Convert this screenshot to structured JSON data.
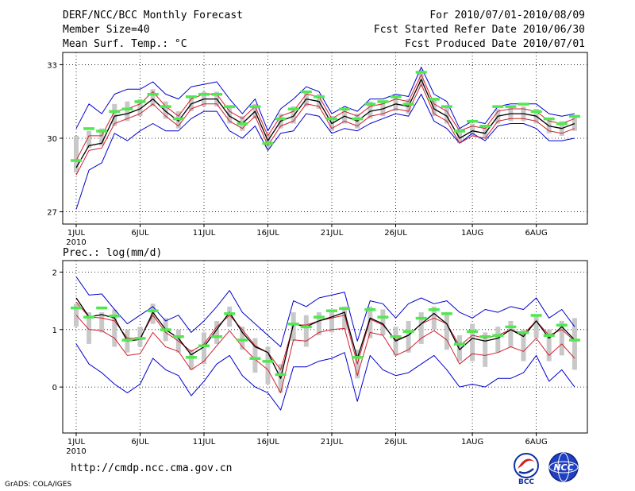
{
  "header": {
    "title": "DERF/NCC/BCC Monthly Forecast",
    "member_size": "Member Size=40",
    "variable_top": "Mean Surf. Temp.: °C",
    "period": "For 2010/07/01-2010/08/09",
    "started": "Fcst Started Refer Date 2010/06/30",
    "produced": "Fcst Produced Date 2010/07/01"
  },
  "footer": {
    "url": "http://cmdp.ncc.cma.gov.cn",
    "credit": "GrADS: COLA/IGES",
    "logo_left": "BCC",
    "logo_right": "NCC"
  },
  "colors": {
    "envelope": "#0000d0",
    "spread": "#d02030",
    "mean": "#000000",
    "marker": "#50e850",
    "box": "#c8c8c8"
  },
  "chart_data": [
    {
      "type": "line",
      "title": "Mean Surf. Temp.: °C",
      "x": [
        1,
        2,
        3,
        4,
        5,
        6,
        7,
        8,
        9,
        10,
        11,
        12,
        13,
        14,
        15,
        16,
        17,
        18,
        19,
        20,
        21,
        22,
        23,
        24,
        25,
        26,
        27,
        28,
        29,
        30,
        31,
        32,
        33,
        34,
        35,
        36,
        37,
        38,
        39,
        40
      ],
      "x_ticks": [
        {
          "x": 1,
          "label": "1JUL"
        },
        {
          "x": 6,
          "label": "6JUL"
        },
        {
          "x": 11,
          "label": "11JUL"
        },
        {
          "x": 16,
          "label": "16JUL"
        },
        {
          "x": 21,
          "label": "21JUL"
        },
        {
          "x": 26,
          "label": "26JUL"
        },
        {
          "x": 32,
          "label": "1AUG"
        },
        {
          "x": 37,
          "label": "6AUG"
        }
      ],
      "x_sublabel": "2010",
      "ylim": [
        26.5,
        33.5
      ],
      "y_ticks": [
        27,
        30,
        33
      ],
      "grid": true,
      "series": [
        {
          "name": "Ensemble max",
          "values": [
            30.4,
            31.4,
            31.0,
            31.8,
            32.0,
            32.0,
            32.3,
            31.8,
            31.6,
            32.1,
            32.2,
            32.3,
            31.6,
            31.0,
            31.6,
            30.3,
            31.2,
            31.6,
            32.1,
            31.9,
            31.0,
            31.3,
            31.1,
            31.6,
            31.6,
            31.8,
            31.7,
            32.9,
            31.8,
            31.5,
            30.4,
            30.7,
            30.6,
            31.3,
            31.4,
            31.4,
            31.4,
            31.0,
            30.9,
            31.0
          ]
        },
        {
          "name": "Ensemble spread upper",
          "values": [
            29.1,
            30.1,
            30.1,
            31.1,
            31.2,
            31.4,
            31.9,
            31.3,
            30.9,
            31.6,
            31.8,
            31.8,
            31.1,
            30.8,
            31.3,
            30.1,
            30.9,
            31.1,
            31.8,
            31.7,
            30.8,
            31.1,
            30.9,
            31.3,
            31.4,
            31.6,
            31.5,
            32.6,
            31.4,
            31.1,
            30.3,
            30.5,
            30.4,
            31.1,
            31.2,
            31.2,
            31.1,
            30.7,
            30.6,
            30.8
          ]
        },
        {
          "name": "Ensemble mean",
          "values": [
            28.8,
            29.7,
            29.8,
            30.9,
            31.0,
            31.2,
            31.6,
            31.1,
            30.7,
            31.4,
            31.6,
            31.6,
            30.9,
            30.6,
            31.1,
            29.9,
            30.7,
            30.9,
            31.6,
            31.5,
            30.6,
            30.9,
            30.7,
            31.1,
            31.2,
            31.4,
            31.3,
            32.4,
            31.2,
            30.9,
            30.0,
            30.3,
            30.2,
            30.9,
            31.0,
            31.0,
            30.9,
            30.5,
            30.4,
            30.6
          ]
        },
        {
          "name": "Ensemble spread lower",
          "values": [
            28.5,
            29.5,
            29.6,
            30.6,
            30.8,
            31.0,
            31.4,
            30.9,
            30.5,
            31.2,
            31.4,
            31.4,
            30.7,
            30.4,
            30.9,
            29.7,
            30.5,
            30.7,
            31.4,
            31.3,
            30.4,
            30.7,
            30.5,
            30.9,
            31.0,
            31.2,
            31.1,
            32.2,
            31.0,
            30.7,
            29.8,
            30.1,
            30.0,
            30.7,
            30.8,
            30.8,
            30.7,
            30.3,
            30.2,
            30.4
          ]
        },
        {
          "name": "Ensemble min",
          "values": [
            27.1,
            28.7,
            29.0,
            30.2,
            29.9,
            30.3,
            30.6,
            30.3,
            30.3,
            30.8,
            31.1,
            31.1,
            30.3,
            30.0,
            30.5,
            29.5,
            30.2,
            30.3,
            31.0,
            30.9,
            30.2,
            30.4,
            30.3,
            30.6,
            30.8,
            31.0,
            30.9,
            31.8,
            30.7,
            30.4,
            29.8,
            30.2,
            29.9,
            30.5,
            30.6,
            30.6,
            30.4,
            29.9,
            29.9,
            30.0
          ]
        },
        {
          "name": "Box low",
          "values": [
            28.6,
            29.6,
            29.7,
            30.5,
            30.7,
            30.9,
            31.3,
            30.8,
            30.4,
            31.1,
            31.3,
            31.3,
            30.6,
            30.3,
            30.8,
            29.6,
            30.4,
            30.6,
            31.3,
            31.2,
            30.3,
            30.6,
            30.4,
            30.8,
            30.9,
            31.1,
            31.0,
            32.1,
            30.9,
            30.6,
            29.8,
            30.1,
            30.0,
            30.6,
            30.7,
            30.7,
            30.6,
            30.2,
            30.1,
            30.3
          ]
        },
        {
          "name": "Box high",
          "values": [
            30.1,
            30.3,
            30.4,
            31.4,
            31.5,
            31.6,
            32.0,
            31.5,
            31.1,
            31.7,
            31.9,
            31.9,
            31.3,
            30.9,
            31.4,
            30.2,
            31.0,
            31.3,
            31.9,
            31.8,
            30.9,
            31.2,
            31.0,
            31.5,
            31.5,
            31.7,
            31.6,
            32.8,
            31.6,
            31.3,
            30.4,
            30.6,
            30.5,
            31.2,
            31.3,
            31.3,
            31.2,
            30.8,
            30.7,
            30.9
          ]
        },
        {
          "name": "Median marker",
          "values": [
            29.1,
            30.4,
            30.3,
            31.1,
            31.2,
            31.5,
            31.8,
            31.3,
            30.8,
            31.7,
            31.8,
            31.8,
            31.3,
            30.6,
            31.3,
            29.8,
            30.8,
            31.2,
            31.9,
            31.7,
            30.8,
            31.2,
            30.8,
            31.4,
            31.5,
            31.7,
            31.4,
            32.7,
            31.6,
            31.3,
            30.3,
            30.7,
            30.5,
            31.3,
            31.3,
            31.4,
            31.1,
            30.8,
            30.6,
            30.9
          ]
        }
      ]
    },
    {
      "type": "line",
      "title": "Prec.: log(mm/d)",
      "x": [
        1,
        2,
        3,
        4,
        5,
        6,
        7,
        8,
        9,
        10,
        11,
        12,
        13,
        14,
        15,
        16,
        17,
        18,
        19,
        20,
        21,
        22,
        23,
        24,
        25,
        26,
        27,
        28,
        29,
        30,
        31,
        32,
        33,
        34,
        35,
        36,
        37,
        38,
        39,
        40
      ],
      "x_ticks": [
        {
          "x": 1,
          "label": "1JUL"
        },
        {
          "x": 6,
          "label": "6JUL"
        },
        {
          "x": 11,
          "label": "11JUL"
        },
        {
          "x": 16,
          "label": "16JUL"
        },
        {
          "x": 21,
          "label": "21JUL"
        },
        {
          "x": 26,
          "label": "26JUL"
        },
        {
          "x": 32,
          "label": "1AUG"
        },
        {
          "x": 37,
          "label": "6AUG"
        }
      ],
      "x_sublabel": "2010",
      "ylim": [
        -0.8,
        2.2
      ],
      "y_ticks": [
        0,
        1,
        2
      ],
      "grid": true,
      "series": [
        {
          "name": "Ensemble max",
          "values": [
            1.92,
            1.6,
            1.62,
            1.35,
            1.1,
            1.25,
            1.4,
            1.15,
            1.25,
            0.95,
            1.15,
            1.4,
            1.68,
            1.3,
            1.1,
            0.9,
            0.7,
            1.5,
            1.4,
            1.55,
            1.6,
            1.65,
            0.8,
            1.5,
            1.45,
            1.2,
            1.45,
            1.55,
            1.45,
            1.5,
            1.3,
            1.2,
            1.35,
            1.3,
            1.4,
            1.35,
            1.55,
            1.2,
            1.35,
            1.05
          ]
        },
        {
          "name": "Ensemble spread upper",
          "values": [
            1.48,
            1.22,
            1.2,
            1.15,
            0.85,
            0.85,
            1.25,
            0.95,
            0.8,
            0.62,
            0.75,
            1.05,
            1.25,
            1.0,
            0.72,
            0.6,
            0.3,
            1.08,
            1.08,
            1.15,
            1.2,
            1.25,
            0.4,
            1.18,
            1.08,
            0.82,
            0.9,
            1.1,
            1.2,
            1.1,
            0.72,
            0.9,
            0.85,
            0.9,
            1.0,
            0.92,
            1.15,
            0.9,
            1.0,
            0.8
          ]
        },
        {
          "name": "Ensemble mean",
          "values": [
            1.55,
            1.22,
            1.26,
            1.2,
            0.8,
            0.83,
            1.3,
            1.0,
            0.85,
            0.56,
            0.7,
            1.0,
            1.3,
            0.95,
            0.7,
            0.6,
            0.15,
            1.1,
            1.05,
            1.15,
            1.22,
            1.3,
            0.5,
            1.2,
            1.1,
            0.8,
            0.9,
            1.1,
            1.28,
            1.1,
            0.65,
            0.85,
            0.8,
            0.85,
            1.0,
            0.88,
            1.15,
            0.85,
            1.05,
            0.82
          ]
        },
        {
          "name": "Ensemble spread lower",
          "values": [
            1.25,
            1.0,
            0.98,
            0.85,
            0.55,
            0.58,
            0.95,
            0.7,
            0.62,
            0.3,
            0.45,
            0.72,
            0.98,
            0.7,
            0.48,
            0.3,
            -0.1,
            0.82,
            0.8,
            0.95,
            1.0,
            1.02,
            0.2,
            0.95,
            0.9,
            0.55,
            0.65,
            0.85,
            0.98,
            0.82,
            0.4,
            0.58,
            0.55,
            0.6,
            0.7,
            0.62,
            0.85,
            0.55,
            0.75,
            0.5
          ]
        },
        {
          "name": "Ensemble min",
          "values": [
            0.75,
            0.4,
            0.25,
            0.05,
            -0.1,
            0.05,
            0.5,
            0.3,
            0.2,
            -0.15,
            0.1,
            0.4,
            0.55,
            0.2,
            0.0,
            -0.1,
            -0.4,
            0.35,
            0.35,
            0.45,
            0.5,
            0.6,
            -0.25,
            0.55,
            0.3,
            0.2,
            0.25,
            0.4,
            0.55,
            0.3,
            0.0,
            0.05,
            0.0,
            0.15,
            0.15,
            0.25,
            0.55,
            0.1,
            0.3,
            0.0
          ]
        },
        {
          "name": "Box low",
          "values": [
            1.05,
            0.75,
            0.95,
            0.7,
            0.6,
            0.7,
            1.1,
            0.8,
            0.6,
            0.3,
            0.4,
            0.75,
            1.05,
            0.65,
            0.25,
            0.05,
            -0.1,
            0.8,
            0.7,
            0.9,
            0.95,
            1.0,
            0.15,
            0.85,
            0.9,
            0.55,
            0.6,
            0.75,
            1.0,
            0.65,
            0.45,
            0.45,
            0.35,
            0.6,
            0.7,
            0.45,
            0.85,
            0.45,
            0.55,
            0.3
          ]
        },
        {
          "name": "Box high",
          "values": [
            1.45,
            1.3,
            1.3,
            1.35,
            1.0,
            1.05,
            1.45,
            1.2,
            1.0,
            0.65,
            0.95,
            1.15,
            1.4,
            1.05,
            0.85,
            0.7,
            0.4,
            1.3,
            1.25,
            1.3,
            1.35,
            1.4,
            0.65,
            1.4,
            1.35,
            1.05,
            1.15,
            1.3,
            1.4,
            1.3,
            0.9,
            1.1,
            0.95,
            1.05,
            1.15,
            1.0,
            1.25,
            1.0,
            1.15,
            1.2
          ]
        },
        {
          "name": "Median marker",
          "values": [
            1.38,
            1.22,
            1.38,
            1.24,
            0.82,
            0.85,
            1.33,
            1.0,
            0.88,
            0.52,
            0.72,
            0.88,
            1.28,
            0.82,
            0.5,
            0.45,
            0.22,
            1.1,
            1.05,
            1.22,
            1.33,
            1.37,
            0.52,
            1.35,
            1.22,
            0.88,
            0.97,
            1.2,
            1.35,
            1.28,
            0.75,
            0.97,
            0.88,
            0.9,
            1.05,
            0.95,
            1.25,
            0.9,
            1.08,
            0.82
          ]
        }
      ]
    }
  ]
}
